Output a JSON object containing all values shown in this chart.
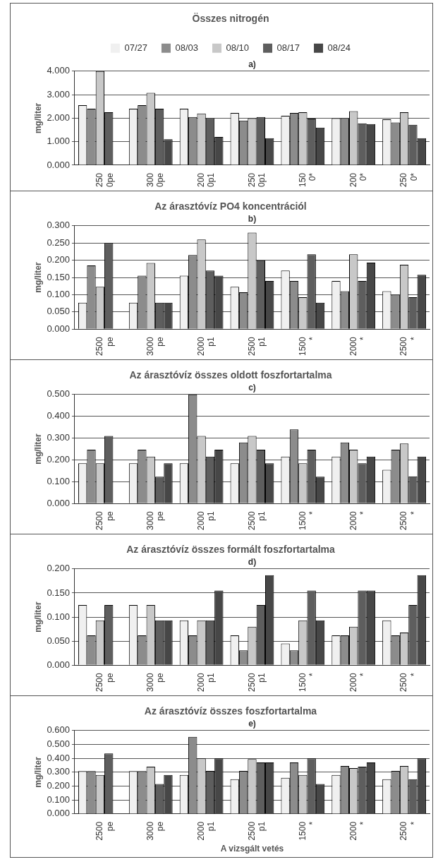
{
  "chart_data": [
    {
      "type": "bar",
      "title": "Összes nitrogén",
      "ylabel": "mg/liter",
      "annotations": [
        "a)"
      ],
      "legend": "top",
      "grid": "y",
      "categories": [
        "250\n0pe",
        "300\n0pe",
        "200\n0p1",
        "250\n0p1",
        "150\n0*",
        "200\n0*",
        "250\n0*"
      ],
      "ylim": [
        0,
        4
      ],
      "yticks": [
        {
          "value": 0,
          "label": "0.000"
        },
        {
          "value": 1,
          "label": "1.000"
        },
        {
          "value": 2,
          "label": "2.000"
        },
        {
          "value": 3,
          "label": "3.000"
        },
        {
          "value": 4,
          "label": "4.000"
        }
      ],
      "series": [
        {
          "name": "07/27",
          "color": "#f0f0f0",
          "values": [
            2.55,
            2.4,
            2.4,
            2.22,
            2.1,
            2.0,
            1.95
          ]
        },
        {
          "name": "08/03",
          "color": "#8c8c8c",
          "values": [
            2.4,
            2.55,
            2.05,
            1.9,
            2.22,
            2.0,
            1.82
          ]
        },
        {
          "name": "08/10",
          "color": "#c8c8c8",
          "values": [
            4.0,
            3.08,
            2.2,
            2.0,
            2.25,
            2.3,
            2.25
          ]
        },
        {
          "name": "08/17",
          "color": "#5e5e5e",
          "values": [
            2.25,
            2.4,
            2.0,
            2.05,
            1.98,
            1.78,
            1.72
          ]
        },
        {
          "name": "08/24",
          "color": "#474747",
          "values": [
            null,
            1.1,
            1.2,
            1.15,
            1.6,
            1.75,
            1.15
          ]
        }
      ]
    },
    {
      "type": "bar",
      "title": "Az árasztóvíz PO4 koncentrációl",
      "ylabel": "mg/liter",
      "annotations": [
        "b)"
      ],
      "grid": "y",
      "categories": [
        "2500\npe",
        "3000\npe",
        "2000\np1",
        "2500\np1",
        "1500\n*",
        "2000\n*",
        "2500\n*"
      ],
      "ylim": [
        0,
        0.3
      ],
      "yticks": [
        {
          "value": 0,
          "label": "0.000"
        },
        {
          "value": 0.05,
          "label": "0.050"
        },
        {
          "value": 0.1,
          "label": "0.100"
        },
        {
          "value": 0.15,
          "label": "0.150"
        },
        {
          "value": 0.2,
          "label": "0.200"
        },
        {
          "value": 0.25,
          "label": "0.250"
        },
        {
          "value": 0.3,
          "label": "0.300"
        }
      ],
      "series": [
        {
          "color": "#f0f0f0",
          "values": [
            0.077,
            0.077,
            0.155,
            0.123,
            0.17,
            0.14,
            0.11
          ]
        },
        {
          "color": "#8c8c8c",
          "values": [
            0.185,
            0.155,
            0.215,
            0.107,
            0.14,
            0.11,
            0.1
          ]
        },
        {
          "color": "#c8c8c8",
          "values": [
            0.123,
            0.192,
            0.26,
            0.28,
            0.093,
            0.217,
            0.187
          ]
        },
        {
          "color": "#5e5e5e",
          "values": [
            0.25,
            0.077,
            0.17,
            0.2,
            0.217,
            0.14,
            0.093
          ]
        },
        {
          "color": "#474747",
          "values": [
            null,
            0.077,
            0.155,
            0.14,
            0.077,
            0.193,
            0.158
          ]
        }
      ]
    },
    {
      "type": "bar",
      "title": "Az árasztóvíz összes oldott foszfortartalma",
      "ylabel": "mg/liter",
      "annotations": [
        "c)"
      ],
      "grid": "y",
      "categories": [
        "2500\npe",
        "3000\npe",
        "2000\np1",
        "2500\np1",
        "1500\n*",
        "2000\n*",
        "2500\n*"
      ],
      "ylim": [
        0,
        0.5
      ],
      "yticks": [
        {
          "value": 0,
          "label": "0.000"
        },
        {
          "value": 0.1,
          "label": "0.100"
        },
        {
          "value": 0.2,
          "label": "0.200"
        },
        {
          "value": 0.3,
          "label": "0.300"
        },
        {
          "value": 0.4,
          "label": "0.400"
        },
        {
          "value": 0.5,
          "label": "0.500"
        }
      ],
      "series": [
        {
          "color": "#f0f0f0",
          "values": [
            0.185,
            0.185,
            0.185,
            0.185,
            0.215,
            0.215,
            0.155
          ]
        },
        {
          "color": "#8c8c8c",
          "values": [
            0.247,
            0.247,
            0.5,
            0.28,
            0.34,
            0.28,
            0.247
          ]
        },
        {
          "color": "#c8c8c8",
          "values": [
            0.185,
            0.215,
            0.31,
            0.31,
            0.185,
            0.247,
            0.275
          ]
        },
        {
          "color": "#5e5e5e",
          "values": [
            0.31,
            0.123,
            0.215,
            0.247,
            0.247,
            0.185,
            0.125
          ]
        },
        {
          "color": "#474747",
          "values": [
            null,
            0.185,
            0.247,
            0.185,
            0.123,
            0.215,
            0.215
          ]
        }
      ]
    },
    {
      "type": "bar",
      "title": "Az árasztóvíz összes formált foszfortartalma",
      "ylabel": "mg/liter",
      "annotations": [
        "d)"
      ],
      "grid": "y",
      "categories": [
        "2500\npe",
        "3000\npe",
        "2000\np1",
        "2500\np1",
        "1500\n*",
        "2000\n*",
        "2500\n*"
      ],
      "ylim": [
        0,
        0.2
      ],
      "yticks": [
        {
          "value": 0,
          "label": "0.000"
        },
        {
          "value": 0.05,
          "label": "0.050"
        },
        {
          "value": 0.1,
          "label": "0.100"
        },
        {
          "value": 0.15,
          "label": "0.150"
        },
        {
          "value": 0.2,
          "label": "0.200"
        }
      ],
      "series": [
        {
          "color": "#f0f0f0",
          "values": [
            0.125,
            0.125,
            0.093,
            0.062,
            0.045,
            0.062,
            0.093
          ]
        },
        {
          "color": "#8c8c8c",
          "values": [
            0.062,
            0.062,
            0.062,
            0.031,
            0.031,
            0.062,
            0.062
          ]
        },
        {
          "color": "#c8c8c8",
          "values": [
            0.093,
            0.125,
            0.093,
            0.08,
            0.093,
            0.08,
            0.068
          ]
        },
        {
          "color": "#5e5e5e",
          "values": [
            0.125,
            0.093,
            0.093,
            0.125,
            0.155,
            0.155,
            0.125
          ]
        },
        {
          "color": "#474747",
          "values": [
            null,
            0.093,
            0.155,
            0.187,
            0.093,
            0.155,
            0.187
          ]
        }
      ]
    },
    {
      "type": "bar",
      "title": "Az árasztóvíz összes foszfortartalma",
      "ylabel": "mg/liter",
      "xlabel": "A vizsgált vetés",
      "annotations": [
        "e)"
      ],
      "grid": "y",
      "categories": [
        "2500\npe",
        "3000\npe",
        "2000\np1",
        "2500\np1",
        "1500\n*",
        "2000\n*",
        "2500\n*"
      ],
      "ylim": [
        0,
        0.6
      ],
      "yticks": [
        {
          "value": 0,
          "label": "0.000"
        },
        {
          "value": 0.1,
          "label": "0.100"
        },
        {
          "value": 0.2,
          "label": "0.200"
        },
        {
          "value": 0.3,
          "label": "0.300"
        },
        {
          "value": 0.4,
          "label": "0.400"
        },
        {
          "value": 0.5,
          "label": "0.500"
        },
        {
          "value": 0.6,
          "label": "0.600"
        }
      ],
      "series": [
        {
          "color": "#f0f0f0",
          "values": [
            0.308,
            0.308,
            0.28,
            0.25,
            0.26,
            0.28,
            0.25
          ]
        },
        {
          "color": "#8c8c8c",
          "values": [
            0.308,
            0.308,
            0.555,
            0.31,
            0.37,
            0.345,
            0.31
          ]
        },
        {
          "color": "#c8c8c8",
          "values": [
            0.28,
            0.34,
            0.4,
            0.395,
            0.28,
            0.33,
            0.345
          ]
        },
        {
          "color": "#5e5e5e",
          "values": [
            0.435,
            0.215,
            0.31,
            0.37,
            0.4,
            0.34,
            0.25
          ]
        },
        {
          "color": "#474747",
          "values": [
            null,
            0.28,
            0.4,
            0.37,
            0.215,
            0.37,
            0.4
          ]
        }
      ]
    }
  ]
}
